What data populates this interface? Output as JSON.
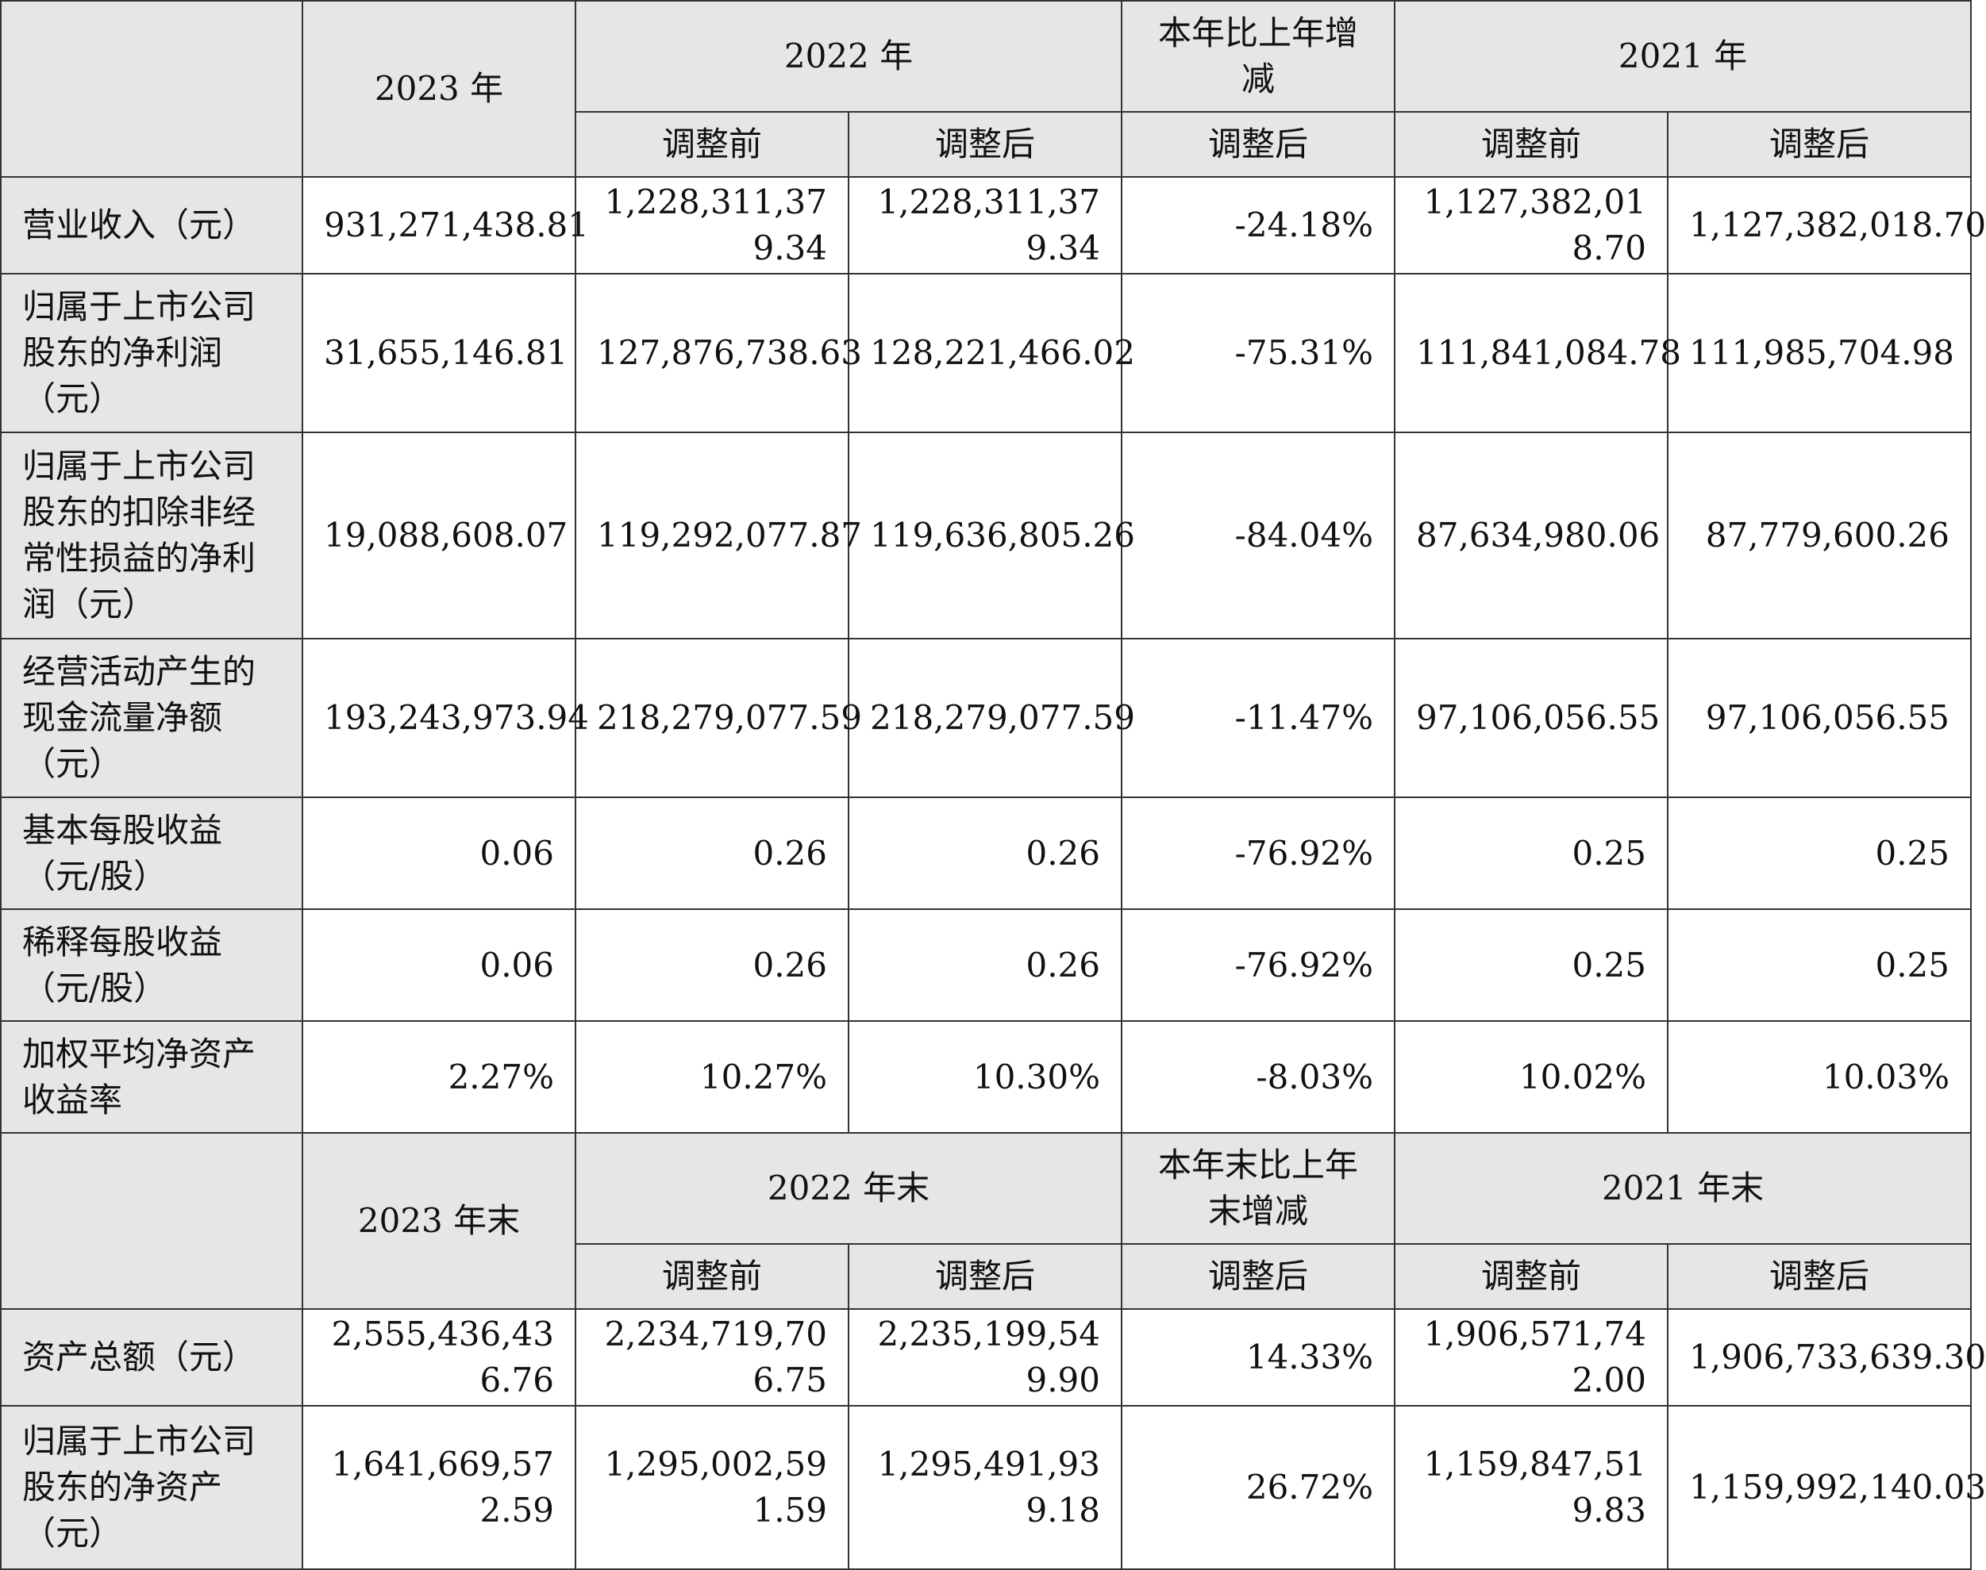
{
  "section1": {
    "headers": {
      "col2023": "2023 年",
      "col2022": "2022 年",
      "colChange": "本年比上年增减",
      "col2021": "2021 年",
      "before": "调整前",
      "after": "调整后"
    },
    "rows": [
      {
        "label": "营业收入（元）",
        "v2023": "931,271,438.81",
        "v2022_before": "1,228,311,379.34",
        "v2022_after": "1,228,311,379.34",
        "change": "-24.18%",
        "v2021_before": "1,127,382,018.70",
        "v2021_after": "1,127,382,018.70"
      },
      {
        "label": "归属于上市公司股东的净利润（元）",
        "v2023": "31,655,146.81",
        "v2022_before": "127,876,738.63",
        "v2022_after": "128,221,466.02",
        "change": "-75.31%",
        "v2021_before": "111,841,084.78",
        "v2021_after": "111,985,704.98"
      },
      {
        "label": "归属于上市公司股东的扣除非经常性损益的净利润（元）",
        "v2023": "19,088,608.07",
        "v2022_before": "119,292,077.87",
        "v2022_after": "119,636,805.26",
        "change": "-84.04%",
        "v2021_before": "87,634,980.06",
        "v2021_after": "87,779,600.26"
      },
      {
        "label": "经营活动产生的现金流量净额（元）",
        "v2023": "193,243,973.94",
        "v2022_before": "218,279,077.59",
        "v2022_after": "218,279,077.59",
        "change": "-11.47%",
        "v2021_before": "97,106,056.55",
        "v2021_after": "97,106,056.55"
      },
      {
        "label": "基本每股收益（元/股）",
        "v2023": "0.06",
        "v2022_before": "0.26",
        "v2022_after": "0.26",
        "change": "-76.92%",
        "v2021_before": "0.25",
        "v2021_after": "0.25"
      },
      {
        "label": "稀释每股收益（元/股）",
        "v2023": "0.06",
        "v2022_before": "0.26",
        "v2022_after": "0.26",
        "change": "-76.92%",
        "v2021_before": "0.25",
        "v2021_after": "0.25"
      },
      {
        "label": "加权平均净资产收益率",
        "v2023": "2.27%",
        "v2022_before": "10.27%",
        "v2022_after": "10.30%",
        "change": "-8.03%",
        "v2021_before": "10.02%",
        "v2021_after": "10.03%"
      }
    ]
  },
  "section2": {
    "headers": {
      "col2023": "2023 年末",
      "col2022": "2022 年末",
      "colChange": "本年末比上年末增减",
      "col2021": "2021 年末",
      "before": "调整前",
      "after": "调整后"
    },
    "rows": [
      {
        "label": "资产总额（元）",
        "v2023": "2,555,436,436.76",
        "v2022_before": "2,234,719,706.75",
        "v2022_after": "2,235,199,549.90",
        "change": "14.33%",
        "v2021_before": "1,906,571,742.00",
        "v2021_after": "1,906,733,639.30"
      },
      {
        "label": "归属于上市公司股东的净资产（元）",
        "v2023": "1,641,669,572.59",
        "v2022_before": "1,295,002,591.59",
        "v2022_after": "1,295,491,939.18",
        "change": "26.72%",
        "v2021_before": "1,159,847,519.83",
        "v2021_after": "1,159,992,140.03"
      }
    ]
  }
}
